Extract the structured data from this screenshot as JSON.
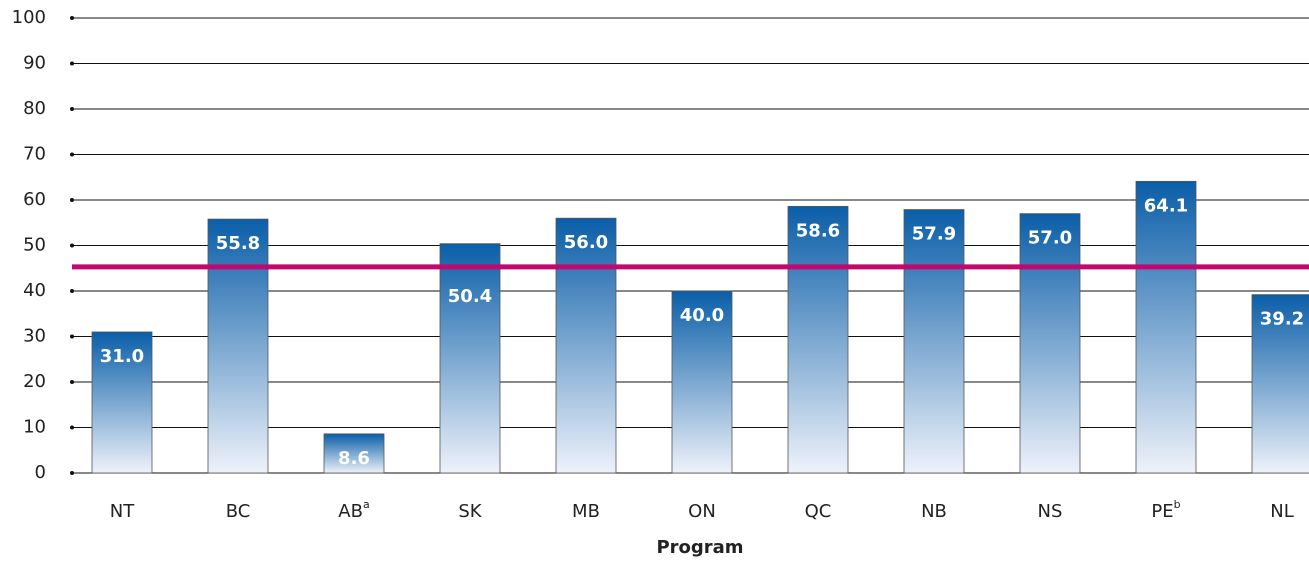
{
  "chart_data": {
    "type": "bar",
    "x_label": "Program",
    "categories": [
      "NT",
      "BC",
      "AB",
      "SK",
      "MB",
      "ON",
      "QC",
      "NB",
      "NS",
      "PE",
      "NL"
    ],
    "superscripts": [
      null,
      null,
      "a",
      null,
      null,
      null,
      null,
      null,
      null,
      "b",
      null
    ],
    "values": [
      31.0,
      55.8,
      8.6,
      50.4,
      56.0,
      40.0,
      58.6,
      57.9,
      57.0,
      64.1,
      39.2
    ],
    "value_labels": [
      "31.0",
      "55.8",
      "8.6",
      "50.4",
      "56.0",
      "40.0",
      "58.6",
      "57.9",
      "57.0",
      "64.1",
      "39.2"
    ],
    "color": "#0a5ea8",
    "reference_line": 45.3,
    "reference_color": "#c0086f",
    "ylim": [
      0,
      100
    ],
    "yticks": [
      0,
      10,
      20,
      30,
      40,
      50,
      60,
      70,
      80,
      90,
      100
    ],
    "grid": true
  }
}
